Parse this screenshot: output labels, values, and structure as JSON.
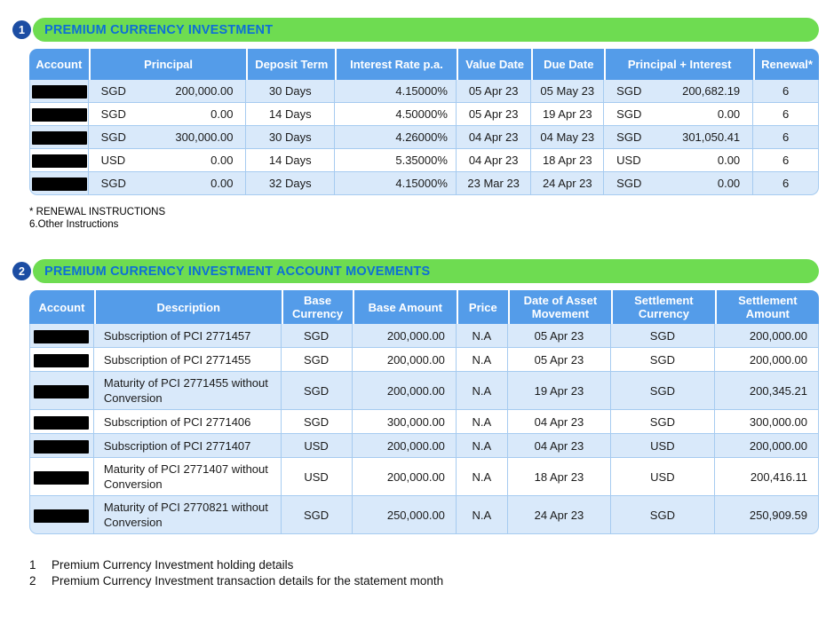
{
  "colors": {
    "accent_green": "#6edc51",
    "title_blue": "#0d6fd6",
    "badge_blue": "#1c4da3",
    "table_header_blue": "#549ce9",
    "row_stripe_blue": "#d9e9fa",
    "cell_border_blue": "#a6cbf0"
  },
  "section1": {
    "badge": "1",
    "title": "PREMIUM CURRENCY INVESTMENT",
    "table": {
      "headers": [
        "Account",
        "Principal",
        "Deposit Term",
        "Interest Rate p.a.",
        "Value Date",
        "Due Date",
        "Principal + Interest",
        "Renewal*"
      ],
      "rows": [
        {
          "principal_ccy": "SGD",
          "principal_amt": "200,000.00",
          "term": "30 Days",
          "rate": "4.15000%",
          "value_date": "05 Apr 23",
          "due_date": "05 May 23",
          "pi_ccy": "SGD",
          "pi_amt": "200,682.19",
          "renewal": "6"
        },
        {
          "principal_ccy": "SGD",
          "principal_amt": "0.00",
          "term": "14 Days",
          "rate": "4.50000%",
          "value_date": "05 Apr 23",
          "due_date": "19 Apr 23",
          "pi_ccy": "SGD",
          "pi_amt": "0.00",
          "renewal": "6"
        },
        {
          "principal_ccy": "SGD",
          "principal_amt": "300,000.00",
          "term": "30 Days",
          "rate": "4.26000%",
          "value_date": "04 Apr 23",
          "due_date": "04 May 23",
          "pi_ccy": "SGD",
          "pi_amt": "301,050.41",
          "renewal": "6"
        },
        {
          "principal_ccy": "USD",
          "principal_amt": "0.00",
          "term": "14 Days",
          "rate": "5.35000%",
          "value_date": "04 Apr 23",
          "due_date": "18 Apr 23",
          "pi_ccy": "USD",
          "pi_amt": "0.00",
          "renewal": "6"
        },
        {
          "principal_ccy": "SGD",
          "principal_amt": "0.00",
          "term": "32 Days",
          "rate": "4.15000%",
          "value_date": "23 Mar 23",
          "due_date": "24 Apr 23",
          "pi_ccy": "SGD",
          "pi_amt": "0.00",
          "renewal": "6"
        }
      ]
    },
    "footnotes": [
      "*  RENEWAL INSTRUCTIONS",
      "6.Other Instructions"
    ]
  },
  "section2": {
    "badge": "2",
    "title": "PREMIUM CURRENCY INVESTMENT ACCOUNT MOVEMENTS",
    "table": {
      "headers": [
        "Account",
        "Description",
        "Base Currency",
        "Base Amount",
        "Price",
        "Date of Asset Movement",
        "Settlement Currency",
        "Settlement Amount"
      ],
      "rows": [
        {
          "description": "Subscription of PCI 2771457",
          "base_ccy": "SGD",
          "base_amt": "200,000.00",
          "price": "N.A",
          "date": "05 Apr 23",
          "settle_ccy": "SGD",
          "settle_amt": "200,000.00"
        },
        {
          "description": "Subscription of PCI 2771455",
          "base_ccy": "SGD",
          "base_amt": "200,000.00",
          "price": "N.A",
          "date": "05 Apr 23",
          "settle_ccy": "SGD",
          "settle_amt": "200,000.00"
        },
        {
          "description": "Maturity of PCI 2771455 without Conversion",
          "base_ccy": "SGD",
          "base_amt": "200,000.00",
          "price": "N.A",
          "date": "19 Apr 23",
          "settle_ccy": "SGD",
          "settle_amt": "200,345.21"
        },
        {
          "description": "Subscription of PCI 2771406",
          "base_ccy": "SGD",
          "base_amt": "300,000.00",
          "price": "N.A",
          "date": "04 Apr 23",
          "settle_ccy": "SGD",
          "settle_amt": "300,000.00"
        },
        {
          "description": "Subscription of PCI 2771407",
          "base_ccy": "USD",
          "base_amt": "200,000.00",
          "price": "N.A",
          "date": "04 Apr 23",
          "settle_ccy": "USD",
          "settle_amt": "200,000.00"
        },
        {
          "description": "Maturity of PCI 2771407 without Conversion",
          "base_ccy": "USD",
          "base_amt": "200,000.00",
          "price": "N.A",
          "date": "18 Apr 23",
          "settle_ccy": "USD",
          "settle_amt": "200,416.11"
        },
        {
          "description": "Maturity of PCI 2770821 without Conversion",
          "base_ccy": "SGD",
          "base_amt": "250,000.00",
          "price": "N.A",
          "date": "24 Apr 23",
          "settle_ccy": "SGD",
          "settle_amt": "250,909.59"
        }
      ]
    }
  },
  "legend": [
    {
      "num": "1",
      "text": "Premium Currency Investment holding details"
    },
    {
      "num": "2",
      "text": "Premium Currency Investment transaction details for the statement month"
    }
  ]
}
